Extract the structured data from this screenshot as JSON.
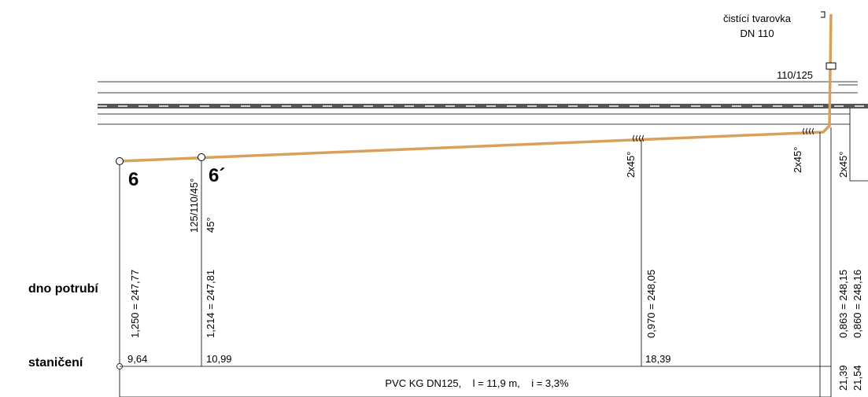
{
  "notes": {
    "fitting_line1": "čistící tvarovka",
    "fitting_line2": "DN 110",
    "reducer": "110/125"
  },
  "row_labels": {
    "bottom": "dno potrubí",
    "stationing": "staničení"
  },
  "manholes": {
    "start": "6",
    "second": "6´"
  },
  "verticals": {
    "v1_depth": "1,250 = 247,77",
    "v1_station": "9,64",
    "v2_fitting": "125/110/45°",
    "v2_angle": "45°",
    "v2_depth": "1,214 = 247,81",
    "v2_station": "10,99",
    "v3_bend": "2x45°",
    "v3_depth": "0,970 = 248,05",
    "v3_station": "18,39",
    "v4_bend": "2x45°",
    "v4_depth": "0,863 = 248,15",
    "v4_station": "21,39",
    "v5_bend": "2x45°",
    "v5_depth": "0,860 = 248,16",
    "v5_station": "21,54"
  },
  "pipe_info": "PVC KG DN125,    l = 11,9 m,    i = 3,3%",
  "colors": {
    "pipe": "#d9a05b",
    "road": "#555555",
    "line": "#000000"
  }
}
